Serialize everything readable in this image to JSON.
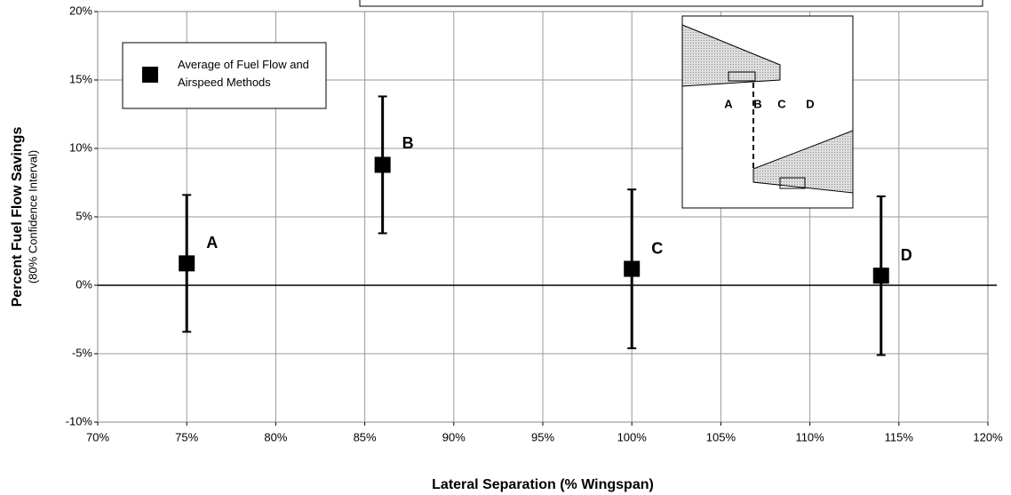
{
  "chart_data": {
    "type": "scatter",
    "x_label": "Lateral Separation (% Wingspan)",
    "y_label": "Percent Fuel Flow Savings",
    "y_sublabel": "(80% Confidence Interval)",
    "xlim": [
      70,
      120
    ],
    "xticks": [
      {
        "value": 70,
        "label": "70%"
      },
      {
        "value": 75,
        "label": "75%"
      },
      {
        "value": 80,
        "label": "80%"
      },
      {
        "value": 85,
        "label": "85%"
      },
      {
        "value": 90,
        "label": "90%"
      },
      {
        "value": 95,
        "label": "95%"
      },
      {
        "value": 100,
        "label": "100%"
      },
      {
        "value": 105,
        "label": "105%"
      },
      {
        "value": 110,
        "label": "110%"
      },
      {
        "value": 115,
        "label": "115%"
      },
      {
        "value": 120,
        "label": "120%"
      }
    ],
    "ylim": [
      -10,
      20
    ],
    "yticks": [
      {
        "value": -10,
        "label": "-10%"
      },
      {
        "value": -5,
        "label": "-5%"
      },
      {
        "value": 0,
        "label": "0%"
      },
      {
        "value": 5,
        "label": "5%"
      },
      {
        "value": 10,
        "label": "10%"
      },
      {
        "value": 15,
        "label": "15%"
      },
      {
        "value": 20,
        "label": "20%"
      }
    ],
    "grid": true,
    "legend": "upper left",
    "series": [
      {
        "name": "Average of Fuel Flow and Airspeed Methods",
        "color": "#000000",
        "x": [
          75,
          86,
          100,
          114
        ],
        "values": [
          1.6,
          8.8,
          1.2,
          0.7
        ],
        "errors": [
          5.0,
          5.0,
          5.8,
          5.8
        ],
        "point_labels": [
          "A",
          "B",
          "C",
          "D"
        ]
      }
    ]
  },
  "inset": {
    "labels": [
      "A",
      "B",
      "C",
      "D"
    ]
  }
}
